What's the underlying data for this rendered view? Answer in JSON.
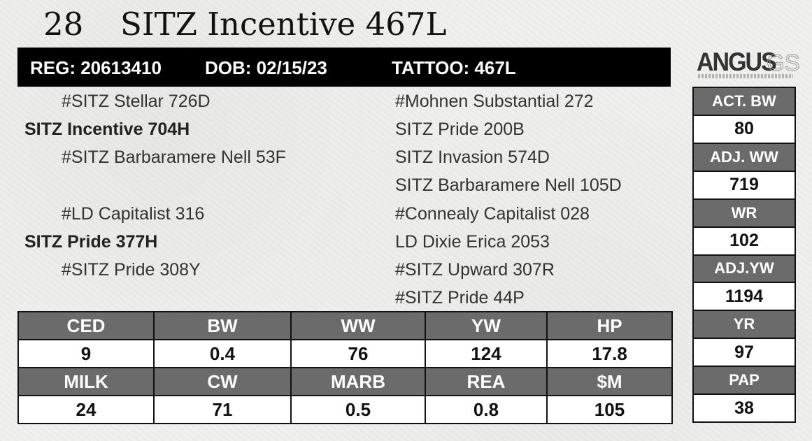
{
  "header": {
    "lot_number": "28",
    "animal_name": "SITZ Incentive 467L"
  },
  "registration": {
    "reg": "REG: 20613410",
    "dob": "DOB: 02/15/23",
    "tattoo": "TATTOO: 467L"
  },
  "logo": {
    "word": "ANGUS",
    "suffix": "GS"
  },
  "pedigree": {
    "sire": "SITZ Incentive 704H",
    "sire_sire": "#SITZ Stellar 726D",
    "sire_dam": "#SITZ Barbaramere Nell 53F",
    "dam": "SITZ Pride 377H",
    "dam_sire": "#LD Capitalist 316",
    "dam_dam": "#SITZ Pride 308Y",
    "sss": "#Mohnen Substantial 272",
    "ssd": "SITZ Pride 200B",
    "sds": "SITZ Invasion 574D",
    "sdd": "SITZ Barbaramere Nell 105D",
    "dss": "#Connealy Capitalist 028",
    "dsd": "LD Dixie Erica 2053",
    "dds": "#SITZ Upward 307R",
    "ddd": "#SITZ Pride 44P"
  },
  "epds": {
    "row1_headers": [
      "CED",
      "BW",
      "WW",
      "YW",
      "HP"
    ],
    "row1_values": [
      "9",
      "0.4",
      "76",
      "124",
      "17.8"
    ],
    "row2_headers": [
      "MILK",
      "CW",
      "MARB",
      "REA",
      "$M"
    ],
    "row2_values": [
      "24",
      "71",
      "0.5",
      "0.8",
      "105"
    ]
  },
  "performance": [
    {
      "label": "ACT. BW",
      "value": "80"
    },
    {
      "label": "ADJ. WW",
      "value": "719"
    },
    {
      "label": "WR",
      "value": "102"
    },
    {
      "label": "ADJ.YW",
      "value": "1194"
    },
    {
      "label": "YR",
      "value": "97"
    },
    {
      "label": "PAP",
      "value": "38"
    }
  ]
}
